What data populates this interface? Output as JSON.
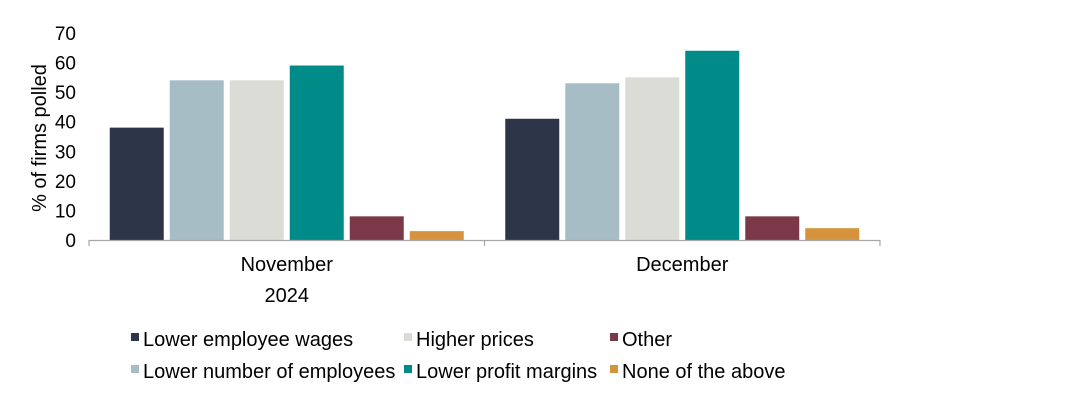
{
  "chart_data": {
    "type": "bar",
    "ylabel": "% of firms polled",
    "ylim": [
      0,
      70
    ],
    "yticks": [
      0,
      10,
      20,
      30,
      40,
      50,
      60,
      70
    ],
    "grid": false,
    "legend_position": "bottom",
    "categories": [
      {
        "line1": "November",
        "line2": "2024"
      },
      {
        "line1": "December",
        "line2": ""
      }
    ],
    "series": [
      {
        "name": "Lower employee wages",
        "color": "#2d3648",
        "values": [
          38,
          41
        ]
      },
      {
        "name": "Lower number of employees",
        "color": "#a7bdc6",
        "values": [
          54,
          53
        ]
      },
      {
        "name": "Higher prices",
        "color": "#dcdcd6",
        "values": [
          54,
          55
        ]
      },
      {
        "name": "Lower profit margins",
        "color": "#008b89",
        "values": [
          59,
          64
        ]
      },
      {
        "name": "Other",
        "color": "#7a3848",
        "values": [
          8,
          8
        ]
      },
      {
        "name": "None of the above",
        "color": "#d6933e",
        "values": [
          3,
          4
        ]
      }
    ]
  }
}
